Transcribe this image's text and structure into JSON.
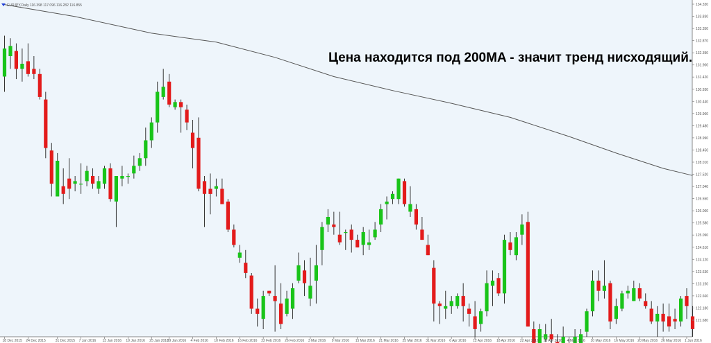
{
  "window": {
    "symbol_info": "EURJPY,Daily 116.398 117.096 116.282 116.855"
  },
  "annotation": "Цена находится под 200MA - значит тренд нисходящий.",
  "colors": {
    "background": "#ffffff",
    "plot_background": "#eef5fb",
    "bull": "#19c419",
    "bear": "#e31b1b",
    "wick": "#333333",
    "ma_line": "#555555",
    "axis": "#888888",
    "text": "#555555"
  },
  "chart_data": {
    "type": "candlestick",
    "title": "",
    "xlabel": "",
    "ylabel": "",
    "ylim": [
      121.4,
      134.6
    ],
    "y_ticks": [
      "134.330",
      "133.830",
      "133.350",
      "132.870",
      "132.390",
      "131.900",
      "131.420",
      "130.930",
      "130.440",
      "129.960",
      "129.480",
      "128.990",
      "128.450",
      "128.010",
      "127.520",
      "127.040",
      "126.550",
      "126.060",
      "125.580",
      "125.090",
      "124.610",
      "124.120",
      "123.630",
      "123.150",
      "122.660",
      "122.180",
      "121.680"
    ],
    "x_tick_labels": [
      "18 Dec 2015",
      "24 Dec 2015",
      "31 Dec 2015",
      "7 Jan 2016",
      "13 Jan 2016",
      "19 Jan 2016",
      "25 Jan 2016",
      "29 Jan 2016",
      "4 Feb 2016",
      "10 Feb 2016",
      "16 Feb 2016",
      "22 Feb 2016",
      "26 Feb 2016",
      "3 Mar 2016",
      "9 Mar 2016",
      "15 Mar 2016",
      "21 Mar 2016",
      "25 Mar 2016",
      "31 Mar 2016",
      "6 Apr 2016",
      "12 Apr 2016",
      "18 Apr 2016",
      "22 Apr 2016",
      "28 Apr 2016",
      "4 May 2016",
      "10 May 2016",
      "16 May 2016",
      "20 May 2016",
      "26 May 2016",
      "1 Jun 2016"
    ],
    "x_tick_index": [
      0,
      4,
      9,
      13,
      17,
      21,
      25,
      28,
      32,
      36,
      40,
      44,
      48,
      52,
      56,
      60,
      64,
      68,
      72,
      76,
      80,
      84,
      88,
      92,
      96,
      100,
      104,
      108,
      112,
      116
    ],
    "series": [
      {
        "type": "candlestick",
        "fields": [
          "open",
          "high",
          "low",
          "close"
        ],
        "values": [
          [
            131.6,
            133.2,
            131.0,
            132.7
          ],
          [
            132.4,
            133.1,
            131.9,
            132.8
          ],
          [
            132.6,
            132.9,
            131.5,
            131.9
          ],
          [
            131.9,
            132.7,
            131.4,
            132.1
          ],
          [
            132.2,
            132.9,
            131.6,
            131.7
          ],
          [
            131.9,
            132.4,
            131.5,
            131.7
          ],
          [
            131.7,
            131.9,
            130.7,
            130.8
          ],
          [
            130.7,
            131.0,
            128.4,
            128.8
          ],
          [
            128.7,
            129.0,
            126.9,
            127.4
          ],
          [
            126.9,
            128.6,
            126.9,
            128.3
          ],
          [
            127.3,
            128.0,
            126.6,
            127.0
          ],
          [
            127.6,
            128.4,
            126.8,
            127.2
          ],
          [
            127.4,
            127.7,
            127.1,
            127.5
          ],
          [
            127.4,
            128.2,
            127.0,
            127.4
          ],
          [
            127.5,
            128.1,
            127.3,
            127.9
          ],
          [
            127.7,
            128.0,
            127.2,
            127.4
          ],
          [
            127.2,
            127.7,
            127.0,
            127.5
          ],
          [
            127.4,
            128.1,
            127.2,
            128.0
          ],
          [
            128.0,
            128.2,
            126.7,
            126.8
          ],
          [
            126.7,
            127.7,
            125.7,
            127.7
          ],
          [
            127.6,
            128.1,
            127.3,
            127.7
          ],
          [
            127.7,
            127.8,
            127.4,
            127.7
          ],
          [
            127.8,
            128.5,
            127.6,
            128.1
          ],
          [
            128.1,
            128.6,
            127.9,
            128.4
          ],
          [
            128.4,
            129.6,
            128.1,
            129.1
          ],
          [
            129.1,
            130.0,
            128.8,
            129.8
          ],
          [
            129.8,
            131.4,
            129.4,
            131.0
          ],
          [
            130.8,
            131.9,
            130.7,
            131.2
          ],
          [
            131.4,
            131.7,
            130.4,
            130.5
          ],
          [
            130.4,
            130.7,
            130.3,
            130.6
          ],
          [
            130.6,
            130.7,
            129.4,
            130.4
          ],
          [
            130.3,
            130.5,
            129.5,
            129.8
          ],
          [
            129.4,
            129.9,
            128.0,
            128.8
          ],
          [
            129.2,
            130.0,
            127.1,
            127.2
          ],
          [
            127.5,
            127.7,
            125.7,
            127.0
          ],
          [
            127.2,
            127.8,
            126.2,
            127.0
          ],
          [
            127.2,
            127.6,
            126.9,
            127.3
          ],
          [
            127.2,
            127.6,
            126.6,
            126.6
          ],
          [
            126.7,
            126.8,
            125.5,
            125.6
          ],
          [
            125.6,
            125.8,
            124.9,
            125.0
          ],
          [
            124.5,
            125.0,
            124.3,
            124.7
          ],
          [
            124.3,
            124.8,
            123.7,
            123.9
          ],
          [
            123.8,
            123.9,
            122.3,
            122.5
          ],
          [
            122.5,
            122.9,
            121.8,
            122.3
          ],
          [
            122.1,
            123.2,
            121.7,
            123.0
          ],
          [
            123.2,
            123.2,
            123.0,
            123.1
          ],
          [
            123.0,
            124.2,
            121.6,
            122.8
          ],
          [
            122.7,
            123.5,
            121.7,
            121.9
          ],
          [
            122.3,
            123.2,
            122.2,
            122.9
          ],
          [
            122.5,
            123.5,
            122.1,
            123.3
          ],
          [
            123.6,
            124.7,
            123.5,
            124.2
          ],
          [
            124.0,
            124.4,
            123.0,
            123.5
          ],
          [
            122.9,
            124.5,
            122.6,
            123.4
          ],
          [
            123.6,
            125.0,
            122.7,
            124.2
          ],
          [
            124.8,
            125.9,
            124.2,
            125.7
          ],
          [
            125.8,
            126.4,
            125.5,
            126.1
          ],
          [
            125.8,
            126.3,
            125.4,
            125.7
          ],
          [
            125.4,
            126.3,
            125.0,
            125.1
          ],
          [
            125.5,
            125.6,
            124.8,
            125.5
          ],
          [
            125.6,
            125.8,
            124.7,
            125.2
          ],
          [
            125.2,
            125.4,
            124.9,
            124.9
          ],
          [
            125.0,
            125.7,
            124.6,
            125.5
          ],
          [
            125.0,
            125.6,
            124.8,
            125.1
          ],
          [
            125.3,
            125.9,
            125.2,
            125.6
          ],
          [
            125.8,
            126.6,
            125.5,
            126.4
          ],
          [
            126.6,
            126.9,
            126.0,
            126.7
          ],
          [
            126.8,
            127.1,
            126.6,
            127.0
          ],
          [
            126.8,
            127.6,
            126.6,
            127.6
          ],
          [
            127.5,
            127.6,
            126.5,
            126.6
          ],
          [
            126.3,
            127.3,
            126.1,
            126.6
          ],
          [
            126.4,
            126.6,
            125.6,
            125.8
          ],
          [
            125.6,
            126.1,
            125.2,
            125.2
          ],
          [
            125.0,
            125.4,
            124.6,
            124.6
          ],
          [
            124.1,
            124.4,
            122.0,
            122.7
          ],
          [
            122.7,
            122.8,
            121.9,
            122.6
          ],
          [
            122.5,
            123.2,
            122.1,
            122.6
          ],
          [
            122.6,
            123.0,
            122.3,
            122.8
          ],
          [
            122.6,
            123.1,
            122.5,
            123.0
          ],
          [
            123.0,
            123.5,
            122.0,
            122.6
          ],
          [
            122.5,
            122.7,
            121.8,
            122.3
          ],
          [
            122.2,
            122.8,
            121.3,
            121.7
          ],
          [
            121.9,
            122.5,
            121.6,
            122.4
          ],
          [
            122.4,
            124.0,
            122.2,
            123.5
          ],
          [
            123.4,
            124.0,
            122.6,
            123.6
          ],
          [
            123.7,
            123.9,
            123.0,
            123.1
          ],
          [
            123.1,
            125.4,
            122.7,
            125.2
          ],
          [
            125.1,
            125.5,
            124.6,
            124.8
          ],
          [
            124.6,
            125.5,
            124.4,
            125.3
          ],
          [
            125.4,
            126.2,
            125.0,
            125.8
          ],
          [
            125.9,
            126.3,
            121.8,
            121.8
          ],
          [
            121.7,
            122.0,
            120.9,
            121.0
          ],
          [
            121.0,
            121.9,
            120.9,
            121.7
          ],
          [
            121.3,
            121.9,
            121.2,
            121.5
          ],
          [
            121.5,
            122.1,
            121.1,
            121.3
          ],
          [
            121.2,
            121.5,
            120.9,
            121.0
          ],
          [
            121.1,
            121.8,
            120.7,
            121.4
          ],
          [
            121.1,
            121.4,
            120.6,
            120.8
          ],
          [
            120.9,
            121.7,
            120.8,
            121.4
          ],
          [
            121.0,
            121.7,
            120.6,
            121.5
          ],
          [
            121.6,
            122.5,
            121.4,
            122.4
          ],
          [
            122.4,
            124.0,
            122.2,
            123.6
          ],
          [
            123.6,
            124.0,
            122.8,
            123.2
          ],
          [
            123.2,
            124.4,
            122.9,
            123.4
          ],
          [
            123.5,
            123.6,
            121.7,
            122.0
          ],
          [
            122.1,
            122.9,
            121.9,
            122.6
          ],
          [
            122.5,
            123.2,
            122.4,
            123.1
          ],
          [
            123.1,
            123.4,
            122.9,
            123.2
          ],
          [
            122.8,
            123.6,
            122.8,
            123.3
          ],
          [
            123.3,
            123.5,
            122.8,
            122.9
          ],
          [
            122.8,
            123.1,
            122.5,
            122.6
          ],
          [
            122.5,
            122.8,
            121.9,
            122.0
          ],
          [
            122.0,
            122.6,
            121.4,
            122.3
          ],
          [
            122.3,
            122.7,
            121.6,
            122.0
          ],
          [
            122.2,
            122.7,
            121.6,
            121.8
          ],
          [
            122.1,
            122.5,
            121.7,
            122.0
          ],
          [
            122.0,
            123.0,
            121.8,
            122.9
          ],
          [
            123.0,
            123.3,
            122.1,
            122.6
          ],
          [
            122.2,
            122.6,
            121.4,
            121.7
          ]
        ]
      },
      {
        "type": "line",
        "values": [
          [
            0,
            134.42
          ],
          [
            12,
            133.95
          ],
          [
            25,
            133.3
          ],
          [
            36,
            132.95
          ],
          [
            46,
            132.35
          ],
          [
            56,
            131.6
          ],
          [
            66,
            131.05
          ],
          [
            76,
            130.55
          ],
          [
            86,
            130.0
          ],
          [
            96,
            129.25
          ],
          [
            104,
            128.6
          ],
          [
            112,
            128.0
          ],
          [
            117,
            127.72
          ]
        ]
      }
    ]
  }
}
